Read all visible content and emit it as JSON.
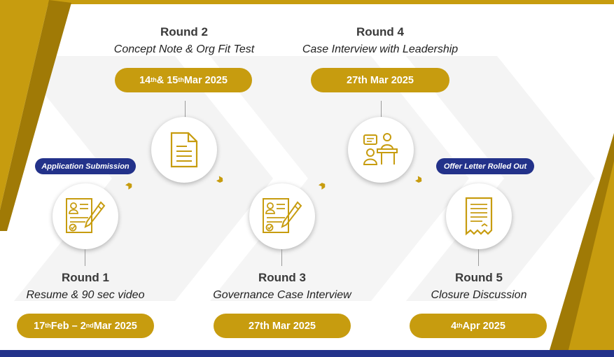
{
  "colors": {
    "gold": "#c79c0f",
    "gold_dark": "#a07a06",
    "navy": "#23328a",
    "bg_chevron": "#f4f4f4"
  },
  "rounds": [
    {
      "title": "Round 1",
      "subtitle": "Resume & 90 sec video",
      "date_parts": [
        "17",
        "th",
        " Feb – 2",
        "nd",
        " Mar 2025"
      ],
      "icon": "resume-checklist-icon"
    },
    {
      "title": "Round 2",
      "subtitle": "Concept Note & Org Fit Test",
      "date_parts": [
        "14",
        "th",
        " & 15",
        "th",
        " Mar 2025"
      ],
      "icon": "document-icon"
    },
    {
      "title": "Round 3",
      "subtitle": "Governance Case Interview",
      "date_parts": [
        "27th Mar 2025"
      ],
      "icon": "resume-checklist-icon"
    },
    {
      "title": "Round 4",
      "subtitle": "Case Interview with Leadership",
      "date_parts": [
        "27th Mar 2025"
      ],
      "icon": "interview-desk-icon"
    },
    {
      "title": "Round 5",
      "subtitle": "Closure Discussion",
      "date_parts": [
        "4",
        "th",
        " Apr 2025"
      ],
      "icon": "certificate-icon"
    }
  ],
  "badges": {
    "application": "Application Submission",
    "offer": "Offer Letter Rolled Out"
  },
  "connectors": {
    "arrow_glyph": "›››"
  }
}
